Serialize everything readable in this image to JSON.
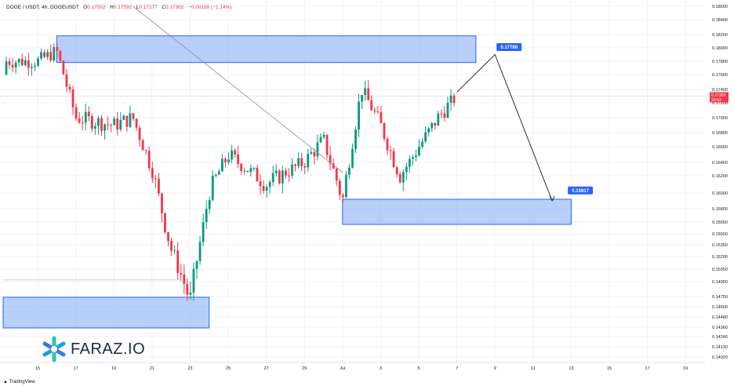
{
  "header": {
    "symbol": "DOGE / USDT, 4h, DOGEUSDT",
    "o_label": "O",
    "o_value": "0.17502",
    "h_label": "H",
    "h_value": "0.17592",
    "l_label": "L",
    "l_value": "0.17177",
    "c_label": "C",
    "c_value": "0.17302",
    "change": "−0.00199 (−1.14%)"
  },
  "logo": {
    "text": "FARAZ.IO",
    "icon": "snowflake-star-icon"
  },
  "footer": {
    "text": "TradingView"
  },
  "colors": {
    "up": "#089981",
    "down": "#f23645",
    "zone_fill": "#7ea7f5",
    "zone_stroke": "#2962ff",
    "label_bg": "#2962ff"
  },
  "chart_data": {
    "type": "candlestick",
    "title": "",
    "y_ticks": [
      "0.18600",
      "0.18400",
      "0.18200",
      "0.18000",
      "0.17800",
      "0.17600",
      "0.17400",
      "0.17200",
      "0.17000",
      "0.16800",
      "0.16600",
      "0.16400",
      "0.16200",
      "0.16000",
      "0.15800",
      "0.15650",
      "0.15500",
      "0.15350",
      "0.15200",
      "0.15050",
      "0.14900",
      "0.14750",
      "0.14600",
      "0.14480",
      "0.14360",
      "0.14240",
      "0.14130",
      "0.14020"
    ],
    "x_ticks": [
      "15",
      "17",
      "19",
      "21",
      "23",
      "25",
      "27",
      "29",
      "Jul",
      "3",
      "5",
      "7",
      "9",
      "11",
      "13",
      "15",
      "17",
      "19"
    ],
    "price_badge": {
      "price": "0.17302",
      "countdown": "23:52"
    },
    "annotations": [
      {
        "label": "0.17788"
      },
      {
        "label": "0.15917"
      }
    ],
    "zones": [
      {
        "name": "resistance-zone",
        "from_date": "Jun 16",
        "to_date": "Jul 8",
        "top": 0.1818,
        "bottom": 0.1778
      },
      {
        "name": "support-zone",
        "from_date": "Jul 1",
        "to_date": "Jul 13",
        "top": 0.1592,
        "bottom": 0.1562
      },
      {
        "name": "demand-zone",
        "from_date": "Jun 14",
        "to_date": "Jun 24",
        "top": 0.1474,
        "bottom": 0.1435
      }
    ],
    "projection_path": [
      {
        "date": "Jul 7",
        "price": 0.1736
      },
      {
        "date": "Jul 9",
        "price": 0.179
      },
      {
        "date": "Jul 12",
        "price": 0.159
      }
    ],
    "candles_sampled": [
      {
        "date": "Jun 15",
        "close": 0.178
      },
      {
        "date": "Jun 16",
        "close": 0.1795
      },
      {
        "date": "Jun 17",
        "close": 0.17
      },
      {
        "date": "Jun 19",
        "close": 0.169
      },
      {
        "date": "Jun 20",
        "close": 0.17
      },
      {
        "date": "Jun 21",
        "close": 0.163
      },
      {
        "date": "Jun 22",
        "close": 0.153
      },
      {
        "date": "Jun 23",
        "close": 0.147
      },
      {
        "date": "Jun 24",
        "close": 0.16
      },
      {
        "date": "Jun 25",
        "close": 0.165
      },
      {
        "date": "Jun 27",
        "close": 0.161
      },
      {
        "date": "Jun 29",
        "close": 0.164
      },
      {
        "date": "Jun 30",
        "close": 0.167
      },
      {
        "date": "Jul 1",
        "close": 0.159
      },
      {
        "date": "Jul 2",
        "close": 0.174
      },
      {
        "date": "Jul 3",
        "close": 0.169
      },
      {
        "date": "Jul 4",
        "close": 0.162
      },
      {
        "date": "Jul 6",
        "close": 0.17
      },
      {
        "date": "Jul 7",
        "close": 0.173
      }
    ]
  }
}
